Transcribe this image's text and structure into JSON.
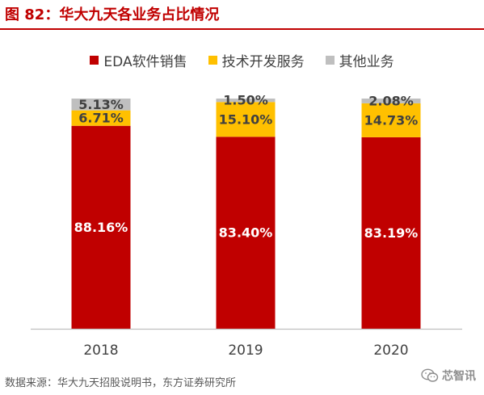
{
  "title": "图 82：华大九天各业务占比情况",
  "source": "数据来源：华大九天招股说明书，东方证券研究所",
  "watermark": "芯智讯",
  "watermark_icon": "wechat-icon",
  "colors": {
    "title": "#c00000",
    "eda": "#c00000",
    "tech": "#ffc000",
    "other": "#bfbfbf",
    "axis_text": "#404040"
  },
  "chart_data": {
    "type": "bar",
    "stacked": true,
    "percent_stacked": true,
    "title": "",
    "xlabel": "",
    "ylabel": "",
    "categories": [
      "2018",
      "2019",
      "2020"
    ],
    "ylim": [
      0,
      100
    ],
    "grid": false,
    "legend_position": "top",
    "series": [
      {
        "name": "EDA软件销售",
        "color": "#c00000",
        "values": [
          88.16,
          83.4,
          83.19
        ],
        "labels": [
          "88.16%",
          "83.40%",
          "83.19%"
        ],
        "label_color": "#ffffff"
      },
      {
        "name": "技术开发服务",
        "color": "#ffc000",
        "values": [
          6.71,
          15.1,
          14.73
        ],
        "labels": [
          "6.71%",
          "15.10%",
          "14.73%"
        ],
        "label_color": "#404040"
      },
      {
        "name": "其他业务",
        "color": "#bfbfbf",
        "values": [
          5.13,
          1.5,
          2.08
        ],
        "labels": [
          "5.13%",
          "1.50%",
          "2.08%"
        ],
        "label_color": "#404040"
      }
    ]
  }
}
